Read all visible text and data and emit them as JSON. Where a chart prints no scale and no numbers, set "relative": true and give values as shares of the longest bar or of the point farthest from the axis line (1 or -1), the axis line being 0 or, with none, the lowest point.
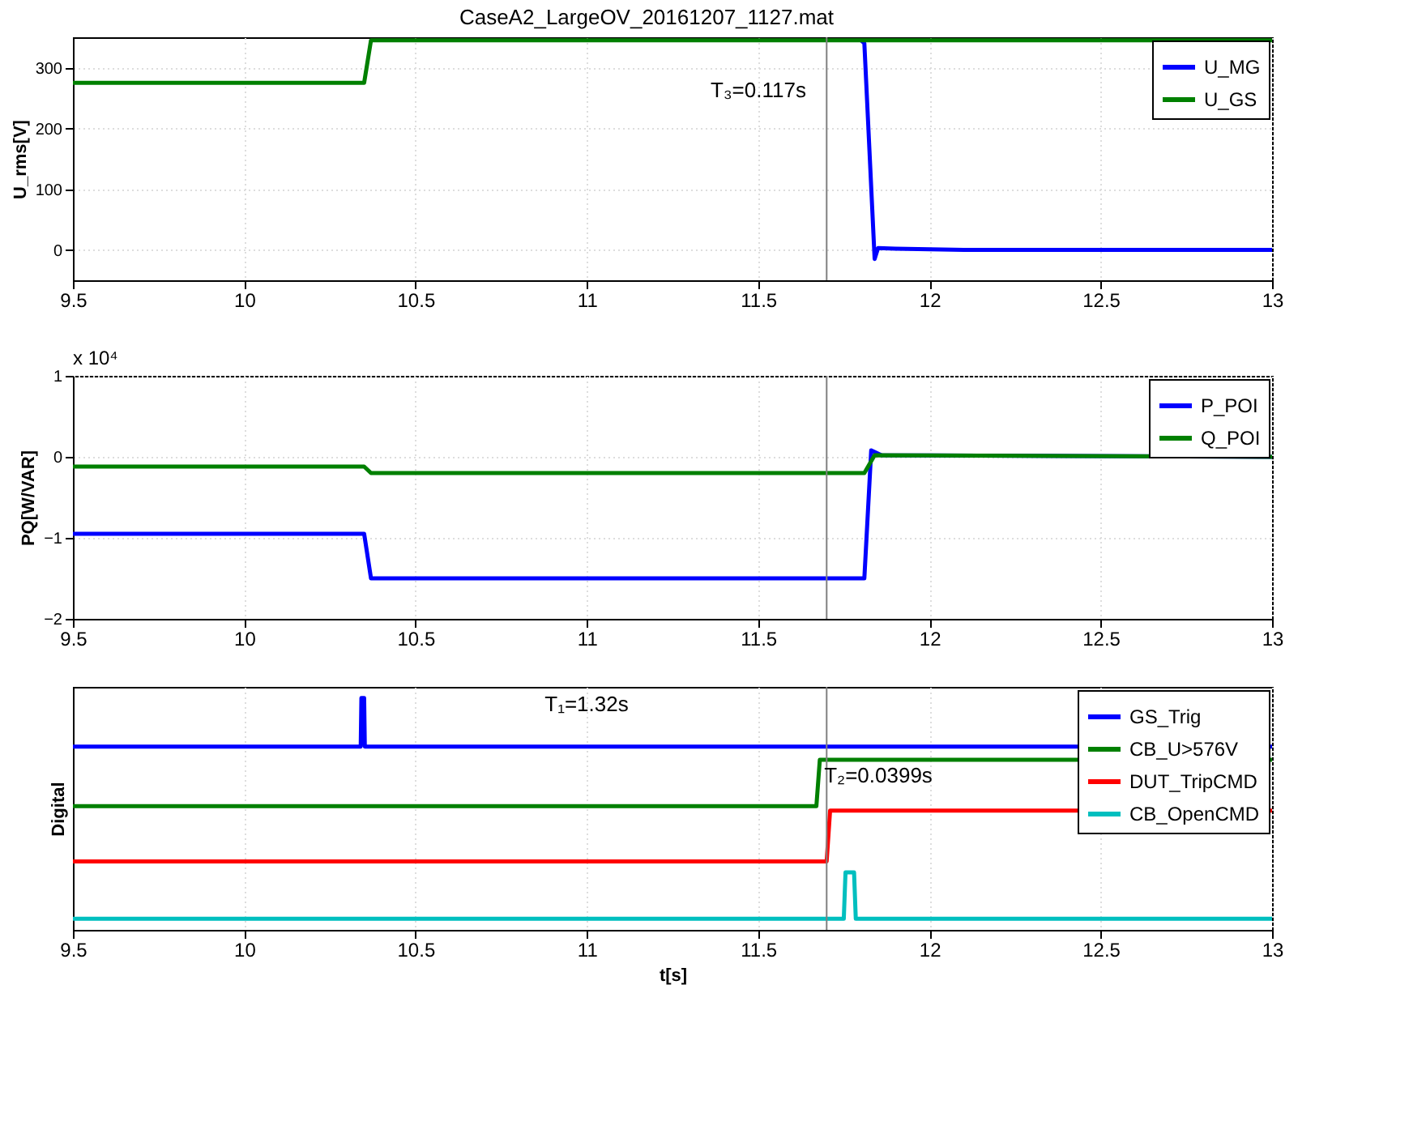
{
  "chart_data": [
    {
      "type": "line",
      "title": "CaseA2_LargeOV_20161207_1127.mat",
      "ylabel": "U_rms[V]",
      "xlim": [
        9.5,
        13
      ],
      "xticks": [
        9.5,
        10,
        10.5,
        11,
        11.5,
        12,
        12.5,
        13
      ],
      "ylim": [
        -50,
        350
      ],
      "yticks": [
        0,
        100,
        200,
        300
      ],
      "grid": true,
      "legend": "top right",
      "series": [
        {
          "name": "U_MG",
          "color": "#0000ff",
          "x": [
            11.8,
            11.81,
            11.84,
            11.85,
            11.9,
            12.1,
            13
          ],
          "values": [
            345,
            340,
            -15,
            3,
            2,
            0,
            0
          ]
        },
        {
          "name": "U_GS",
          "color": "#008000",
          "x": [
            9.5,
            10.35,
            10.37,
            13
          ],
          "values": [
            275,
            275,
            345,
            345
          ]
        }
      ],
      "ref_lines": [
        {
          "axis": "x",
          "value": 11.7,
          "color": "#808080"
        }
      ],
      "annotations": [
        "T₃=0.117s"
      ]
    },
    {
      "type": "line",
      "ylabel": "PQ[W/VAR]",
      "xlim": [
        9.5,
        13
      ],
      "xticks": [
        9.5,
        10,
        10.5,
        11,
        11.5,
        12,
        12.5,
        13
      ],
      "ylim": [
        -2,
        1
      ],
      "yticks": [
        -2,
        -1,
        0,
        1
      ],
      "grid": true,
      "legend": "top right",
      "series": [
        {
          "name": "P_POI",
          "color": "#0000ff",
          "x": [
            9.5,
            10.35,
            10.37,
            11.81,
            11.83,
            11.86,
            13
          ],
          "values": [
            -0.95,
            -0.95,
            -1.5,
            -1.5,
            0.08,
            0.02,
            0
          ]
        },
        {
          "name": "Q_POI",
          "color": "#008000",
          "x": [
            9.5,
            10.35,
            10.37,
            11.81,
            11.84,
            13
          ],
          "values": [
            -0.12,
            -0.12,
            -0.2,
            -0.2,
            0.02,
            0
          ]
        }
      ],
      "ref_lines": [
        {
          "axis": "x",
          "value": 11.7,
          "color": "#808080"
        }
      ],
      "annotations": [
        "x 10⁴"
      ]
    },
    {
      "type": "line",
      "xlabel": "t[s]",
      "ylabel": "Digital",
      "xlim": [
        9.5,
        13
      ],
      "xticks": [
        9.5,
        10,
        10.5,
        11,
        11.5,
        12,
        12.5,
        13
      ],
      "relative": true,
      "grid": "x",
      "legend": "top right",
      "series": [
        {
          "name": "GS_Trig",
          "color": "#0000ff",
          "x": [
            9.5,
            10.34,
            10.342,
            10.35,
            10.352,
            13
          ],
          "values": [
            0.78,
            0.78,
            1,
            1,
            0.78,
            0.78
          ]
        },
        {
          "name": "CB_U>576V",
          "color": "#008000",
          "x": [
            9.5,
            11.67,
            11.68,
            13
          ],
          "values": [
            0.51,
            0.51,
            0.72,
            0.72
          ]
        },
        {
          "name": "DUT_TripCMD",
          "color": "#ff0000",
          "x": [
            9.5,
            11.7,
            11.71,
            13
          ],
          "values": [
            0.26,
            0.26,
            0.49,
            0.49
          ]
        },
        {
          "name": "CB_OpenCMD",
          "color": "#00bfbf",
          "x": [
            9.5,
            11.75,
            11.755,
            11.78,
            11.785,
            13
          ],
          "values": [
            0,
            0,
            0.21,
            0.21,
            0,
            0
          ]
        }
      ],
      "ref_lines": [
        {
          "axis": "x",
          "value": 11.7,
          "color": "#808080"
        }
      ],
      "annotations": [
        "T₁=1.32s",
        "T₂=0.0399s"
      ]
    }
  ]
}
